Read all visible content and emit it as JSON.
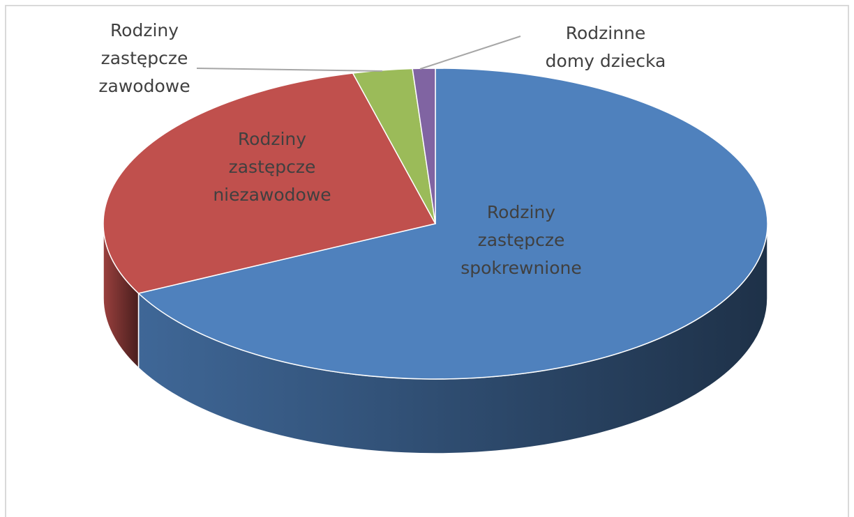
{
  "chart_data": {
    "type": "pie3d",
    "categories": [
      "Rodziny\nzastępcze\nspokrewnione",
      "Rodziny\nzastępcze\nniezawodowe",
      "Rodziny\nzastępcze\nzawodowe",
      "Rodzinne\ndomy dziecka"
    ],
    "values": [
      67.6,
      28.4,
      2.9,
      1.1
    ],
    "colors": [
      "#4f81bd",
      "#c0504d",
      "#9bbb59",
      "#8064a2"
    ]
  }
}
